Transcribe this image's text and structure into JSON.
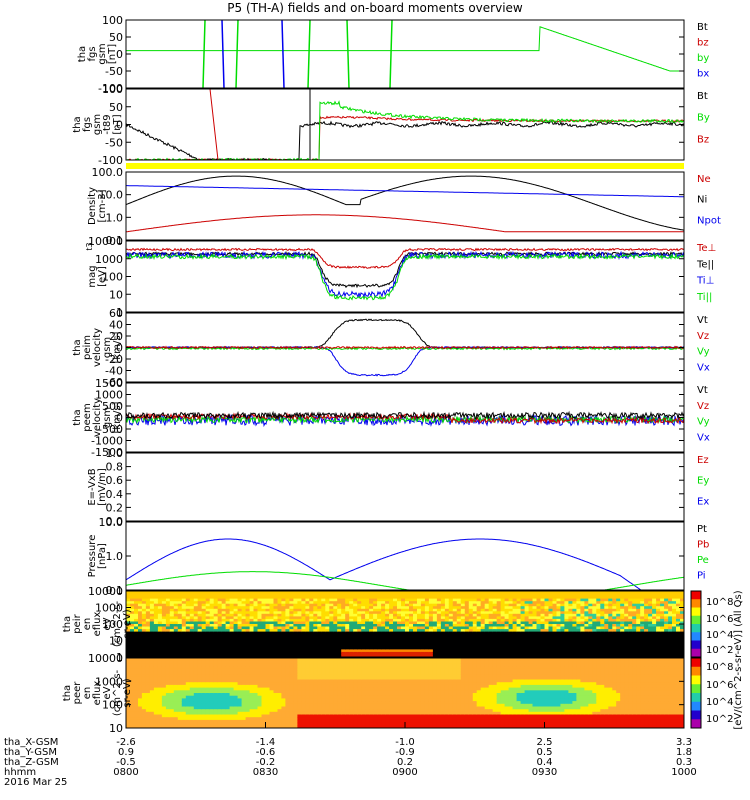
{
  "title": "P5 (TH-A) fields and on-board moments overview",
  "colors": {
    "black": "#000000",
    "red": "#cc0000",
    "green": "#00dd00",
    "blue": "#0000ee",
    "yellow": "#ffff00"
  },
  "time_axis": {
    "ticks": [
      "0800",
      "0830",
      "0900",
      "0930",
      "1000"
    ],
    "date": "2016 Mar 25",
    "row_labels": [
      "tha_X-GSM",
      "tha_Y-GSM",
      "tha_Z-GSM",
      "hhmm"
    ],
    "rows": [
      [
        "-2.6",
        "-1.4",
        "-1.0",
        "2.5",
        "3.3"
      ],
      [
        "0.9",
        "-0.6",
        "-0.9",
        "0.5",
        "1.8"
      ],
      [
        "-0.5",
        "-0.2",
        "0.2",
        "0.4",
        "0.3"
      ]
    ]
  },
  "chart_data": [
    {
      "id": "fgs",
      "type": "line",
      "ylabel_lines": [
        "tha",
        "fgs",
        "gsm",
        "[nT]"
      ],
      "ylim": [
        -100,
        100
      ],
      "ticks": [
        "100",
        "50",
        "0",
        "-50",
        "-100"
      ],
      "legend": [
        {
          "name": "Bt",
          "color": "#000000"
        },
        {
          "name": "bz",
          "color": "#cc0000"
        },
        {
          "name": "by",
          "color": "#00dd00"
        },
        {
          "name": "bx",
          "color": "#0000ee"
        }
      ]
    },
    {
      "id": "fgs_dip",
      "type": "line",
      "ylabel_lines": [
        "tha",
        "fgs",
        "gsm",
        "-t89",
        "[nT]"
      ],
      "ylim": [
        -120,
        120
      ],
      "ticks": [
        "100",
        "50",
        "0",
        "-50",
        "-100"
      ],
      "legend": [
        {
          "name": "Bt",
          "color": "#000000"
        },
        {
          "name": "By",
          "color": "#00dd00"
        },
        {
          "name": "Bz",
          "color": "#cc0000"
        }
      ]
    },
    {
      "id": "density",
      "type": "line",
      "ylabel_lines": [
        "Density",
        "[cm-3]"
      ],
      "scale": "log",
      "ticks": [
        "100.0",
        "10.0",
        "1.0",
        "0.1"
      ],
      "legend": [
        {
          "name": "Ne",
          "color": "#cc0000"
        },
        {
          "name": "Ni",
          "color": "#000000"
        },
        {
          "name": "Npot",
          "color": "#0000ee"
        }
      ]
    },
    {
      "id": "temp",
      "type": "line",
      "ylabel_lines": [
        "mag",
        "[eV]"
      ],
      "ylabel_super": "t3",
      "scale": "log",
      "ticks": [
        "10000",
        "1000",
        "100",
        "10",
        "1"
      ],
      "legend": [
        {
          "name": "Te⊥",
          "color": "#cc0000"
        },
        {
          "name": "Te||",
          "color": "#000000"
        },
        {
          "name": "Ti⊥",
          "color": "#0000ee"
        },
        {
          "name": "Ti||",
          "color": "#00dd00"
        }
      ]
    },
    {
      "id": "peim",
      "type": "line",
      "ylabel_lines": [
        "tha",
        "peim",
        "velocity",
        "gsm",
        "[km/s]"
      ],
      "ylim": [
        -60,
        60
      ],
      "ticks": [
        "60",
        "40",
        "20",
        "0",
        "-20",
        "-40",
        "-60"
      ],
      "legend": [
        {
          "name": "Vt",
          "color": "#000000"
        },
        {
          "name": "Vz",
          "color": "#cc0000"
        },
        {
          "name": "Vy",
          "color": "#00dd00"
        },
        {
          "name": "Vx",
          "color": "#0000ee"
        }
      ]
    },
    {
      "id": "peem",
      "type": "line",
      "ylabel_lines": [
        "tha",
        "peem",
        "velocity",
        "gsm",
        "[km/s]"
      ],
      "ylim": [
        -1500,
        1500
      ],
      "ticks": [
        "1500",
        "1000",
        "500",
        "0",
        "-500",
        "-1000",
        "-1500"
      ],
      "legend": [
        {
          "name": "Vt",
          "color": "#000000"
        },
        {
          "name": "Vz",
          "color": "#cc0000"
        },
        {
          "name": "Vy",
          "color": "#00dd00"
        },
        {
          "name": "Vx",
          "color": "#0000ee"
        }
      ]
    },
    {
      "id": "efield",
      "type": "line",
      "ylabel_lines": [
        "E=-VxB",
        "[mV/m]"
      ],
      "ylim": [
        0,
        1
      ],
      "ticks": [
        "1.0",
        "0.8",
        "0.6",
        "0.4",
        "0.2",
        "0.0"
      ],
      "legend": [
        {
          "name": "Ez",
          "color": "#cc0000"
        },
        {
          "name": "Ey",
          "color": "#00dd00"
        },
        {
          "name": "Ex",
          "color": "#0000ee"
        }
      ]
    },
    {
      "id": "pressure",
      "type": "line",
      "ylabel_lines": [
        "Pressure",
        "[nPa]"
      ],
      "scale": "log",
      "ticks": [
        "10.0",
        "1.0",
        "0.1"
      ],
      "legend": [
        {
          "name": "Pt",
          "color": "#000000"
        },
        {
          "name": "Pb",
          "color": "#cc0000"
        },
        {
          "name": "Pe",
          "color": "#00dd00"
        },
        {
          "name": "Pi",
          "color": "#0000ee"
        }
      ]
    },
    {
      "id": "peir",
      "type": "heatmap",
      "ylabel_lines": [
        "tha",
        "peir",
        "en",
        "eflux",
        "eV",
        "(cm^2-s-",
        "sr-eV)"
      ],
      "scale": "log",
      "ticks": [
        "10000",
        "1000",
        "100",
        "10",
        "1"
      ]
    },
    {
      "id": "peer",
      "type": "heatmap",
      "ylabel_lines": [
        "tha",
        "peer",
        "en",
        "eflux",
        "eV",
        "(cm^2-s-",
        "sr-eV)"
      ],
      "scale": "log",
      "ticks": [
        "10000",
        "1000",
        "100",
        "10"
      ]
    }
  ],
  "colorbar": {
    "label": "[eV/(cm^2-s-sr-eV)] (All Qs)",
    "ticks": [
      "10^8",
      "10^6",
      "10^4",
      "10^2",
      "10^8",
      "10^6",
      "10^4",
      "10^2"
    ]
  }
}
